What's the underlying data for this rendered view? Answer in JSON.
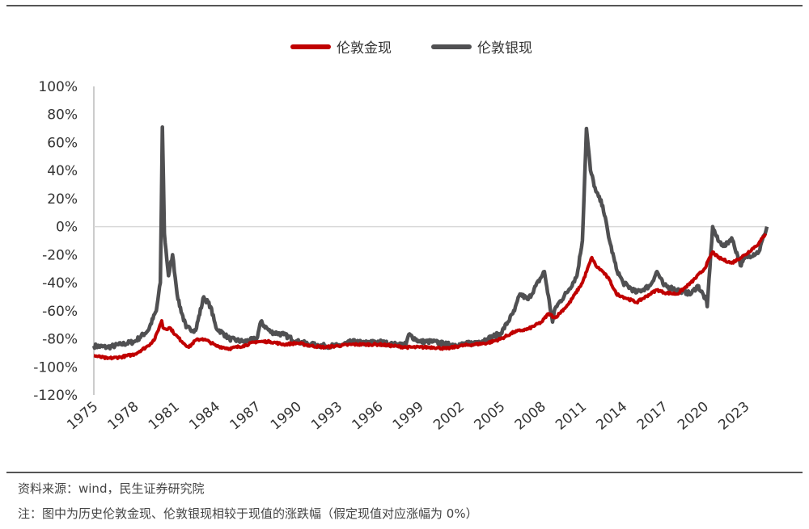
{
  "footer": {
    "source": "资料来源：wind，民生证券研究院",
    "note": "注：图中为历史伦敦金现、伦敦银现相较于现值的涨跌幅（假定现值对应涨幅为 0%）"
  },
  "chart_data": {
    "type": "line",
    "title": "",
    "xlabel": "",
    "ylabel": "",
    "y_unit": "%",
    "ylim": [
      -120,
      100
    ],
    "xlim": [
      1975,
      2024.6
    ],
    "yticks": [
      "100%",
      "80%",
      "60%",
      "40%",
      "20%",
      "0%",
      "-20%",
      "-40%",
      "-60%",
      "-80%",
      "-100%",
      "-120%"
    ],
    "xticks": [
      "1975",
      "1978",
      "1981",
      "1984",
      "1987",
      "1990",
      "1993",
      "1996",
      "1999",
      "2002",
      "2005",
      "2008",
      "2011",
      "2014",
      "2017",
      "2020",
      "2023"
    ],
    "grid": false,
    "zero_line": true,
    "legend_position": "top-center",
    "colors": {
      "gold": "#c00000",
      "silver": "#505052",
      "axis": "#999999",
      "zero": "#d9d9d9"
    },
    "series": [
      {
        "name": "伦敦金现",
        "x": [
          1975,
          1976,
          1977,
          1978,
          1979,
          1979.5,
          1980.0,
          1980.1,
          1980.3,
          1980.6,
          1981,
          1981.5,
          1982,
          1982.5,
          1983,
          1983.5,
          1984,
          1985,
          1986,
          1987,
          1988,
          1989,
          1990,
          1991,
          1992,
          1993,
          1994,
          1995,
          1996,
          1997,
          1998,
          1999,
          2000,
          2001,
          2002,
          2003,
          2004,
          2005,
          2006,
          2006.5,
          2007,
          2008,
          2008.5,
          2009,
          2010,
          2011,
          2011.7,
          2012,
          2012.5,
          2013,
          2013.5,
          2014,
          2015,
          2016,
          2016.5,
          2017,
          2018,
          2019,
          2020,
          2020.6,
          2021,
          2022,
          2023,
          2024,
          2024.5
        ],
        "values": [
          -92,
          -94,
          -93,
          -91,
          -85,
          -80,
          -67,
          -72,
          -73,
          -72,
          -77,
          -82,
          -86,
          -81,
          -80,
          -82,
          -85,
          -87,
          -85,
          -82,
          -82,
          -84,
          -83,
          -85,
          -86,
          -85,
          -84,
          -84,
          -84,
          -85,
          -86,
          -86,
          -86,
          -87,
          -85,
          -84,
          -83,
          -80,
          -75,
          -74,
          -73,
          -68,
          -62,
          -65,
          -55,
          -40,
          -22,
          -28,
          -32,
          -38,
          -48,
          -50,
          -54,
          -48,
          -45,
          -47,
          -48,
          -40,
          -30,
          -18,
          -22,
          -26,
          -20,
          -12,
          -5
        ]
      },
      {
        "name": "伦敦银现",
        "x": [
          1975,
          1976,
          1977,
          1978,
          1979,
          1979.6,
          1979.9,
          1980.05,
          1980.2,
          1980.5,
          1980.8,
          1981.2,
          1981.8,
          1982.5,
          1983.1,
          1983.6,
          1984,
          1985,
          1986,
          1987,
          1987.3,
          1988,
          1989,
          1990,
          1991,
          1992,
          1993,
          1994,
          1995,
          1996,
          1997,
          1998,
          1998.2,
          1999,
          2000,
          2001,
          2002,
          2003,
          2004,
          2005,
          2006,
          2006.4,
          2007,
          2008.2,
          2008.8,
          2009,
          2010,
          2010.6,
          2011.0,
          2011.3,
          2011.6,
          2012,
          2012.5,
          2013,
          2013.5,
          2014,
          2015,
          2016,
          2016.5,
          2017,
          2018,
          2019,
          2019.5,
          2020.1,
          2020.2,
          2020.6,
          2021,
          2021.5,
          2022,
          2022.7,
          2023,
          2024,
          2024.4,
          2024.6
        ],
        "values": [
          -85,
          -86,
          -84,
          -82,
          -74,
          -60,
          -40,
          71,
          -5,
          -35,
          -20,
          -52,
          -72,
          -74,
          -50,
          -57,
          -72,
          -80,
          -82,
          -80,
          -68,
          -75,
          -77,
          -82,
          -84,
          -85,
          -85,
          -82,
          -83,
          -82,
          -84,
          -84,
          -77,
          -82,
          -82,
          -84,
          -84,
          -83,
          -80,
          -76,
          -60,
          -48,
          -52,
          -32,
          -68,
          -58,
          -45,
          -35,
          -10,
          70,
          40,
          25,
          15,
          -10,
          -30,
          -40,
          -47,
          -42,
          -32,
          -42,
          -45,
          -48,
          -42,
          -52,
          -57,
          0,
          -10,
          -14,
          -8,
          -28,
          -22,
          -18,
          -6,
          0
        ]
      }
    ]
  }
}
